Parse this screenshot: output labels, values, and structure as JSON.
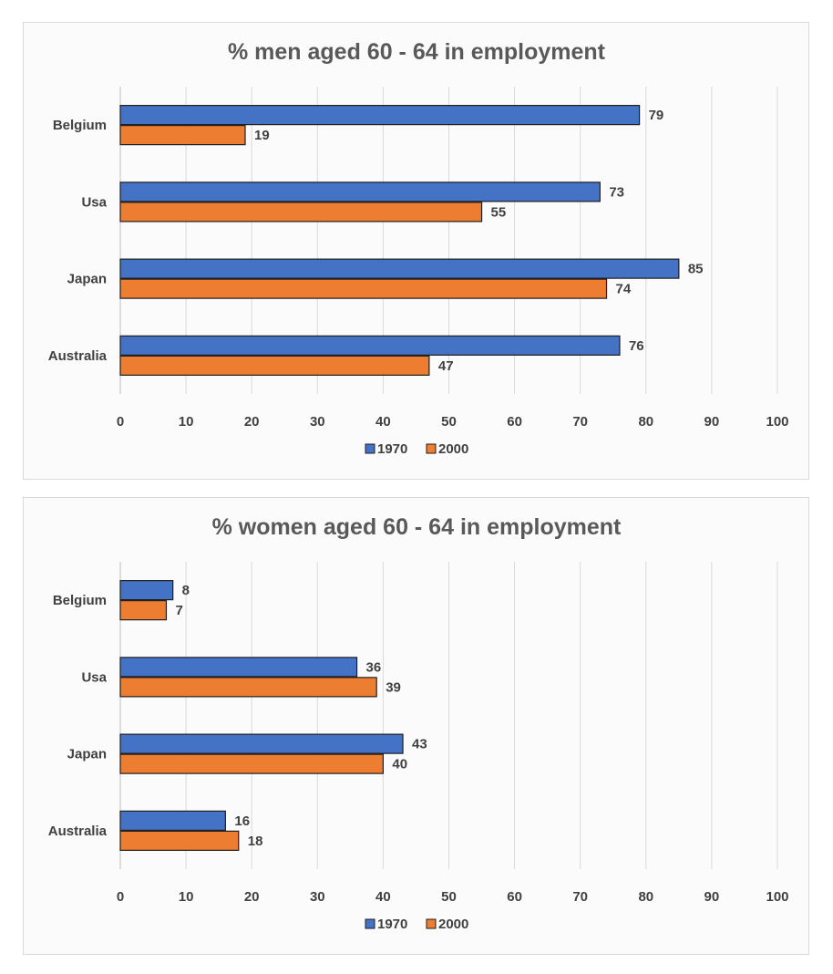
{
  "chart_data": [
    {
      "type": "bar",
      "orientation": "horizontal",
      "title": "% men aged 60 - 64 in employment",
      "categories": [
        "Belgium",
        "Usa",
        "Japan",
        "Australia"
      ],
      "series": [
        {
          "name": "1970",
          "values": [
            79,
            73,
            85,
            76
          ],
          "color": "#4472c4"
        },
        {
          "name": "2000",
          "values": [
            19,
            55,
            74,
            47
          ],
          "color": "#ed7d31"
        }
      ],
      "xlim": [
        0,
        100
      ],
      "xticks": [
        0,
        10,
        20,
        30,
        40,
        50,
        60,
        70,
        80,
        90,
        100
      ],
      "grid": true,
      "legend": "bottom"
    },
    {
      "type": "bar",
      "orientation": "horizontal",
      "title": "% women aged 60 - 64 in employment",
      "categories": [
        "Belgium",
        "Usa",
        "Japan",
        "Australia"
      ],
      "series": [
        {
          "name": "1970",
          "values": [
            8,
            36,
            43,
            16
          ],
          "color": "#4472c4"
        },
        {
          "name": "2000",
          "values": [
            7,
            39,
            40,
            18
          ],
          "color": "#ed7d31"
        }
      ],
      "xlim": [
        0,
        100
      ],
      "xticks": [
        0,
        10,
        20,
        30,
        40,
        50,
        60,
        70,
        80,
        90,
        100
      ],
      "grid": true,
      "legend": "bottom"
    }
  ]
}
